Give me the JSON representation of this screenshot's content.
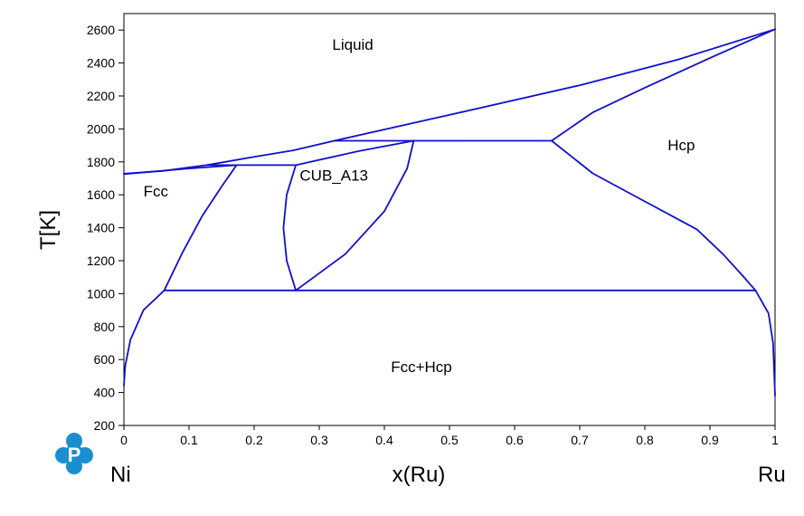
{
  "chart_data": {
    "type": "line",
    "title": "",
    "xlabel": "x(Ru)",
    "ylabel": "T[K]",
    "xlim": [
      0,
      1
    ],
    "ylim": [
      200,
      2700
    ],
    "x_ticks": [
      0,
      0.1,
      0.2,
      0.3,
      0.4,
      0.5,
      0.6,
      0.7,
      0.8,
      0.9,
      1
    ],
    "x_tick_labels": [
      "0",
      "0.1",
      "0.2",
      "0.3",
      "0.4",
      "0.5",
      "0.6",
      "0.7",
      "0.8",
      "0.9",
      "1"
    ],
    "y_ticks": [
      200,
      400,
      600,
      800,
      1000,
      1200,
      1400,
      1600,
      1800,
      2000,
      2200,
      2400,
      2600
    ],
    "y_tick_labels": [
      "200",
      "400",
      "600",
      "800",
      "1000",
      "1200",
      "1400",
      "1600",
      "1800",
      "2000",
      "2200",
      "2400",
      "2600"
    ],
    "left_end_label": "Ni",
    "right_end_label": "Ru",
    "line_color": "#1010cc",
    "grid": false,
    "region_labels": [
      {
        "text": "Liquid",
        "x": 0.32,
        "y": 2480
      },
      {
        "text": "Hcp",
        "x": 0.835,
        "y": 1870
      },
      {
        "text": "CUB_A13",
        "x": 0.27,
        "y": 1685
      },
      {
        "text": "Fcc",
        "x": 0.03,
        "y": 1590
      },
      {
        "text": "Fcc+Hcp",
        "x": 0.41,
        "y": 525
      }
    ],
    "series": [
      {
        "values": [
          [
            0,
            1728
          ],
          [
            0.06,
            1745
          ],
          [
            0.127,
            1780
          ],
          [
            0.2,
            1830
          ],
          [
            0.26,
            1870
          ],
          [
            0.323,
            1928
          ],
          [
            0.5,
            2085
          ],
          [
            0.7,
            2265
          ],
          [
            0.85,
            2420
          ],
          [
            1,
            2605
          ]
        ]
      },
      {
        "values": [
          [
            0,
            1726
          ],
          [
            0.1,
            1760
          ],
          [
            0.173,
            1780
          ]
        ]
      },
      {
        "values": [
          [
            0.127,
            1780
          ],
          [
            0.173,
            1780
          ]
        ]
      },
      {
        "values": [
          [
            0.173,
            1780
          ],
          [
            0.15,
            1650
          ],
          [
            0.12,
            1470
          ],
          [
            0.09,
            1250
          ],
          [
            0.062,
            1020
          ]
        ]
      },
      {
        "values": [
          [
            0.173,
            1780
          ],
          [
            0.264,
            1780
          ]
        ]
      },
      {
        "values": [
          [
            0.264,
            1780
          ],
          [
            0.25,
            1600
          ],
          [
            0.245,
            1400
          ],
          [
            0.25,
            1200
          ],
          [
            0.264,
            1020
          ]
        ]
      },
      {
        "values": [
          [
            0.264,
            1780
          ],
          [
            0.36,
            1865
          ],
          [
            0.445,
            1928
          ]
        ]
      },
      {
        "values": [
          [
            0.445,
            1928
          ],
          [
            0.435,
            1760
          ],
          [
            0.4,
            1500
          ],
          [
            0.34,
            1240
          ],
          [
            0.264,
            1020
          ]
        ]
      },
      {
        "values": [
          [
            0.323,
            1928
          ],
          [
            0.657,
            1928
          ]
        ]
      },
      {
        "values": [
          [
            0.657,
            1928
          ],
          [
            0.72,
            2100
          ],
          [
            0.8,
            2250
          ],
          [
            0.9,
            2430
          ],
          [
            1,
            2605
          ]
        ]
      },
      {
        "values": [
          [
            0.657,
            1928
          ],
          [
            0.72,
            1730
          ],
          [
            0.8,
            1560
          ],
          [
            0.88,
            1390
          ],
          [
            0.92,
            1240
          ],
          [
            0.95,
            1110
          ],
          [
            0.97,
            1020
          ]
        ]
      },
      {
        "values": [
          [
            0.062,
            1020
          ],
          [
            0.97,
            1020
          ]
        ]
      },
      {
        "values": [
          [
            0.062,
            1020
          ],
          [
            0.03,
            900
          ],
          [
            0.01,
            720
          ],
          [
            0.002,
            560
          ],
          [
            0,
            440
          ]
        ]
      },
      {
        "values": [
          [
            0.97,
            1020
          ],
          [
            0.99,
            880
          ],
          [
            0.997,
            700
          ],
          [
            1,
            380
          ]
        ]
      }
    ]
  }
}
